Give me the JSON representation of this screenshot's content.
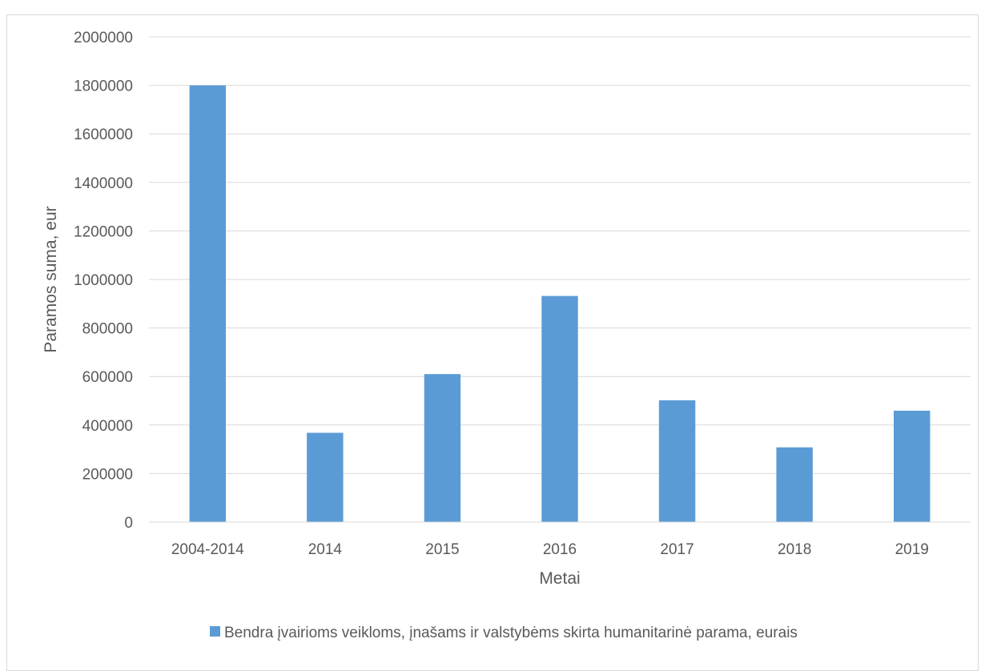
{
  "chart_data": {
    "type": "bar",
    "title": "",
    "xlabel": "Metai",
    "ylabel": "Paramos suma, eur",
    "categories": [
      "2004-2014",
      "2014",
      "2015",
      "2016",
      "2017",
      "2018",
      "2019"
    ],
    "series": [
      {
        "name": "Bendra įvairioms veikloms, įnašams ir valstybėms skirta humanitarinė parama, eurais",
        "color": "#5b9bd5",
        "values": [
          1800000,
          368000,
          610000,
          932000,
          502000,
          308000,
          459000
        ]
      }
    ],
    "ylim": [
      0,
      2000000
    ],
    "yticks": [
      "0",
      "200000",
      "400000",
      "600000",
      "800000",
      "1000000",
      "1200000",
      "1400000",
      "1600000",
      "1800000",
      "2000000"
    ],
    "grid": true,
    "legend_position": "bottom",
    "colors": {
      "bar": "#5b9bd5",
      "gridline": "#d9d9d9",
      "text": "#595959",
      "border": "#d9d9d9"
    }
  }
}
